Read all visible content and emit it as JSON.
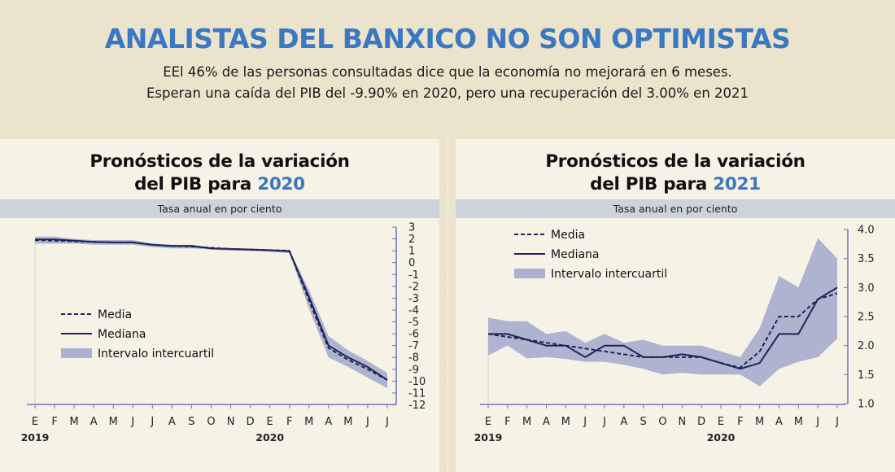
{
  "header": {
    "title": "ANALISTAS DEL BANXICO NO SON OPTIMISTAS",
    "line1": "EEl 46% de las personas consultadas dice que la economía no mejorará en 6 meses.",
    "line2": "Esperan una caída del PIB del -9.90% en 2020, pero una recuperación del 3.00% en 2021"
  },
  "colors": {
    "title_blue": "#3a78c2",
    "navy": "#1e2455",
    "band": "#aab0cf"
  },
  "chart_data": [
    {
      "type": "line",
      "title_text": "Pronósticos de la variación del PIB para",
      "title_year": "2020",
      "subtitle": "Tasa anual en por ciento",
      "x_labels": [
        "E",
        "F",
        "M",
        "A",
        "M",
        "J",
        "J",
        "A",
        "S",
        "O",
        "N",
        "D",
        "E",
        "F",
        "M",
        "A",
        "M",
        "J",
        "J"
      ],
      "year_labels": [
        {
          "label": "2019",
          "index": 0
        },
        {
          "label": "2020",
          "index": 12
        }
      ],
      "ylim": [
        -12,
        3
      ],
      "y_ticks": [
        3,
        2,
        1,
        0,
        -1,
        -2,
        -3,
        -4,
        -5,
        -6,
        -7,
        -8,
        -9,
        -10,
        -11,
        -12
      ],
      "y_tick_labels": [
        "3",
        "2",
        "1",
        "0",
        "-1",
        "-2",
        "-3",
        "-4",
        "-5",
        "-6",
        "-7",
        "-8",
        "-9",
        "-10",
        "-11",
        "-12"
      ],
      "legend": [
        "Media",
        "Mediana",
        "Intervalo intercuartil"
      ],
      "legend_position": "bottom-left",
      "series": [
        {
          "name": "Media",
          "values": [
            1.9,
            1.85,
            1.8,
            1.75,
            1.7,
            1.7,
            1.5,
            1.4,
            1.35,
            1.25,
            1.15,
            1.1,
            1.05,
            1.0,
            -3.2,
            -7.2,
            -8.2,
            -9.0,
            -9.9
          ]
        },
        {
          "name": "Mediana",
          "values": [
            1.95,
            1.95,
            1.85,
            1.75,
            1.7,
            1.7,
            1.5,
            1.4,
            1.4,
            1.2,
            1.15,
            1.1,
            1.05,
            0.95,
            -2.9,
            -7.0,
            -8.0,
            -8.8,
            -9.9
          ]
        }
      ],
      "band": {
        "name": "Intervalo intercuartil",
        "upper": [
          2.2,
          2.2,
          2.0,
          1.9,
          1.9,
          1.9,
          1.6,
          1.5,
          1.5,
          1.3,
          1.2,
          1.2,
          1.1,
          1.1,
          -2.3,
          -6.2,
          -7.4,
          -8.3,
          -9.3
        ],
        "lower": [
          1.6,
          1.6,
          1.6,
          1.5,
          1.5,
          1.5,
          1.3,
          1.2,
          1.2,
          1.1,
          1.0,
          1.0,
          0.9,
          0.8,
          -3.9,
          -8.0,
          -8.8,
          -9.7,
          -10.6
        ]
      }
    },
    {
      "type": "line",
      "title_text": "Pronósticos de la variación del PIB para",
      "title_year": "2021",
      "subtitle": "Tasa anual en por ciento",
      "x_labels": [
        "E",
        "F",
        "M",
        "A",
        "M",
        "J",
        "J",
        "A",
        "S",
        "O",
        "N",
        "D",
        "E",
        "F",
        "M",
        "A",
        "M",
        "J",
        "J"
      ],
      "year_labels": [
        {
          "label": "2019",
          "index": 0
        },
        {
          "label": "2020",
          "index": 12
        }
      ],
      "ylim": [
        1.0,
        4.0
      ],
      "y_ticks": [
        4.0,
        3.5,
        3.0,
        2.5,
        2.0,
        1.5,
        1.0
      ],
      "y_tick_labels": [
        "4.0",
        "3.5",
        "3.0",
        "2.5",
        "2.0",
        "1.5",
        "1.0"
      ],
      "legend": [
        "Media",
        "Mediana",
        "Intervalo intercuartil"
      ],
      "legend_position": "top-left",
      "series": [
        {
          "name": "Media",
          "values": [
            2.2,
            2.15,
            2.1,
            2.05,
            2.0,
            1.95,
            1.9,
            1.85,
            1.8,
            1.8,
            1.8,
            1.8,
            1.7,
            1.62,
            1.9,
            2.5,
            2.5,
            2.8,
            2.9
          ]
        },
        {
          "name": "Mediana",
          "values": [
            2.2,
            2.2,
            2.1,
            2.0,
            2.0,
            1.8,
            2.0,
            2.0,
            1.8,
            1.8,
            1.85,
            1.8,
            1.7,
            1.6,
            1.7,
            2.2,
            2.2,
            2.8,
            3.0
          ]
        }
      ],
      "band": {
        "name": "Intervalo intercuartil",
        "upper": [
          2.48,
          2.42,
          2.42,
          2.2,
          2.25,
          2.05,
          2.2,
          2.05,
          2.1,
          2.0,
          2.0,
          2.0,
          1.9,
          1.8,
          2.3,
          3.2,
          3.0,
          3.85,
          3.5
        ],
        "lower": [
          1.83,
          2.0,
          1.78,
          1.8,
          1.77,
          1.72,
          1.72,
          1.67,
          1.6,
          1.5,
          1.53,
          1.5,
          1.5,
          1.5,
          1.3,
          1.6,
          1.72,
          1.8,
          2.12
        ]
      }
    }
  ]
}
